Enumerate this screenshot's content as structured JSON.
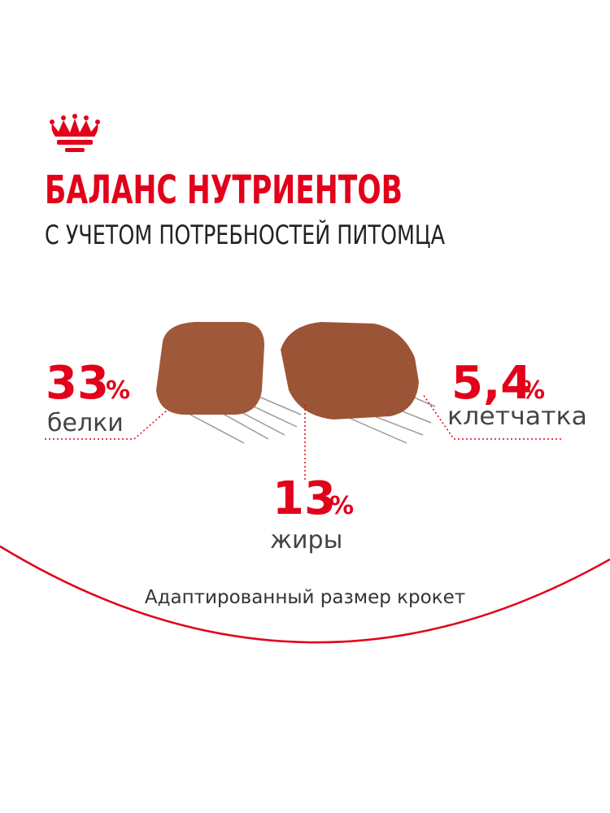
{
  "header": {
    "title": "БАЛАНС НУТРИЕНТОВ",
    "subtitle": "С УЧЕТОМ ПОТРЕБНОСТЕЙ ПИТОМЦА"
  },
  "nutrients": [
    {
      "value": "33",
      "unit": "%",
      "label": "белки"
    },
    {
      "value": "13",
      "unit": "%",
      "label": "жиры"
    },
    {
      "value": "5,4",
      "unit": "%",
      "label": "клетчатка"
    }
  ],
  "footer": {
    "caption": "Адаптированный размер крокет"
  }
}
